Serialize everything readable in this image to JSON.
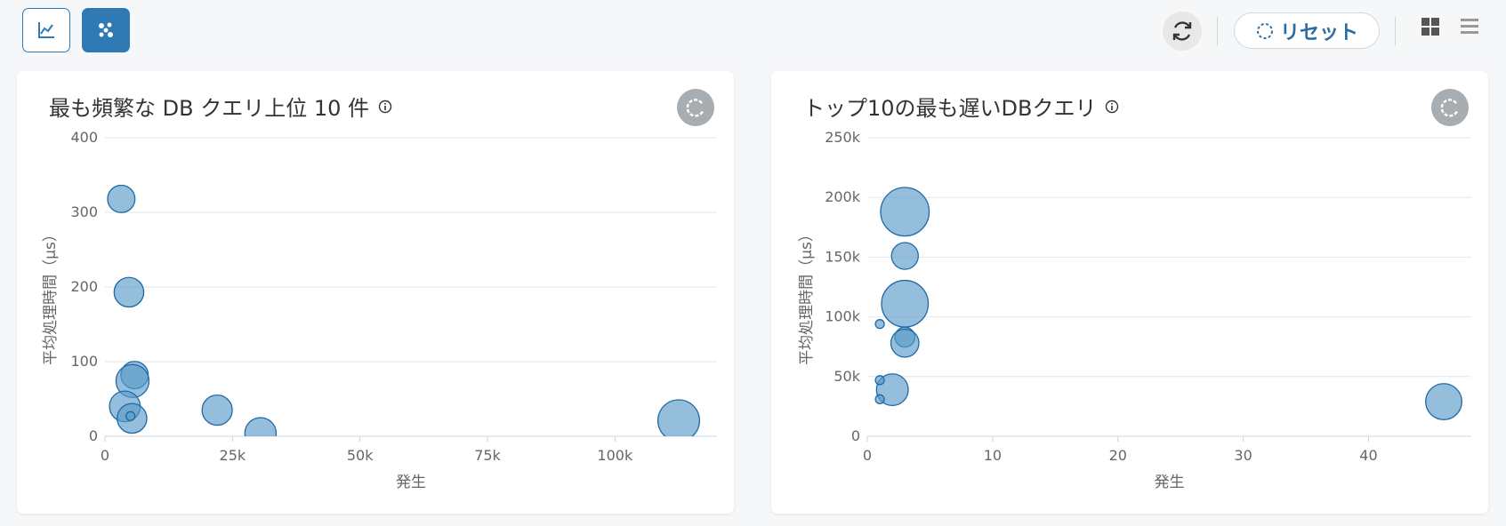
{
  "toolbar": {
    "line_view_icon": "line-chart-icon",
    "scatter_view_icon": "scatter-chart-icon",
    "refresh_icon": "refresh-icon",
    "reset_label": "リセット",
    "grid_icon": "grid-view-icon",
    "list_icon": "list-view-icon",
    "accent_color": "#2f7ab5"
  },
  "chart_data": [
    {
      "type": "scatter",
      "title": "最も頻繁な DB クエリ上位 10 件",
      "xlabel": "発生",
      "ylabel": "平均処理時間（μs）",
      "xlim": [
        0,
        120000
      ],
      "ylim": [
        0,
        400
      ],
      "x_ticks": [
        0,
        25000,
        50000,
        75000,
        100000
      ],
      "x_tick_labels": [
        "0",
        "25k",
        "50k",
        "75k",
        "100k"
      ],
      "y_ticks": [
        0,
        100,
        200,
        300,
        400
      ],
      "y_tick_labels": [
        "0",
        "100",
        "200",
        "300",
        "400"
      ],
      "bubble_color": "#5b9bc8",
      "points": [
        {
          "x": 3200,
          "y": 318,
          "size": 0.48
        },
        {
          "x": 4700,
          "y": 193,
          "size": 0.52
        },
        {
          "x": 5800,
          "y": 82,
          "size": 0.48
        },
        {
          "x": 5400,
          "y": 74,
          "size": 0.58
        },
        {
          "x": 3900,
          "y": 40,
          "size": 0.54
        },
        {
          "x": 5300,
          "y": 24,
          "size": 0.52
        },
        {
          "x": 5000,
          "y": 27,
          "size": 0.12
        },
        {
          "x": 22000,
          "y": 35,
          "size": 0.53
        },
        {
          "x": 30500,
          "y": 4,
          "size": 0.55
        },
        {
          "x": 112500,
          "y": 21,
          "size": 0.73
        }
      ]
    },
    {
      "type": "scatter",
      "title": "トップ10の最も遅いDBクエリ",
      "xlabel": "発生",
      "ylabel": "平均処理時間（μs）",
      "xlim": [
        0,
        48.2
      ],
      "ylim": [
        0,
        250000
      ],
      "x_ticks": [
        0,
        10,
        20,
        30,
        40
      ],
      "x_tick_labels": [
        "0",
        "10",
        "20",
        "30",
        "40"
      ],
      "y_ticks": [
        0,
        50000,
        100000,
        150000,
        200000,
        250000
      ],
      "y_tick_labels": [
        "0",
        "50k",
        "100k",
        "150k",
        "200k",
        "250k"
      ],
      "bubble_color": "#5b9bc8",
      "points": [
        {
          "x": 3,
          "y": 188000,
          "size": 0.78
        },
        {
          "x": 3,
          "y": 151000,
          "size": 0.43
        },
        {
          "x": 3,
          "y": 111000,
          "size": 0.75
        },
        {
          "x": 3,
          "y": 83000,
          "size": 0.32
        },
        {
          "x": 3,
          "y": 78000,
          "size": 0.45
        },
        {
          "x": 2,
          "y": 39000,
          "size": 0.51
        },
        {
          "x": 1,
          "y": 94000,
          "size": 0.14
        },
        {
          "x": 1,
          "y": 47000,
          "size": 0.13
        },
        {
          "x": 1,
          "y": 31000,
          "size": 0.13
        },
        {
          "x": 46,
          "y": 29000,
          "size": 0.58
        }
      ]
    }
  ]
}
